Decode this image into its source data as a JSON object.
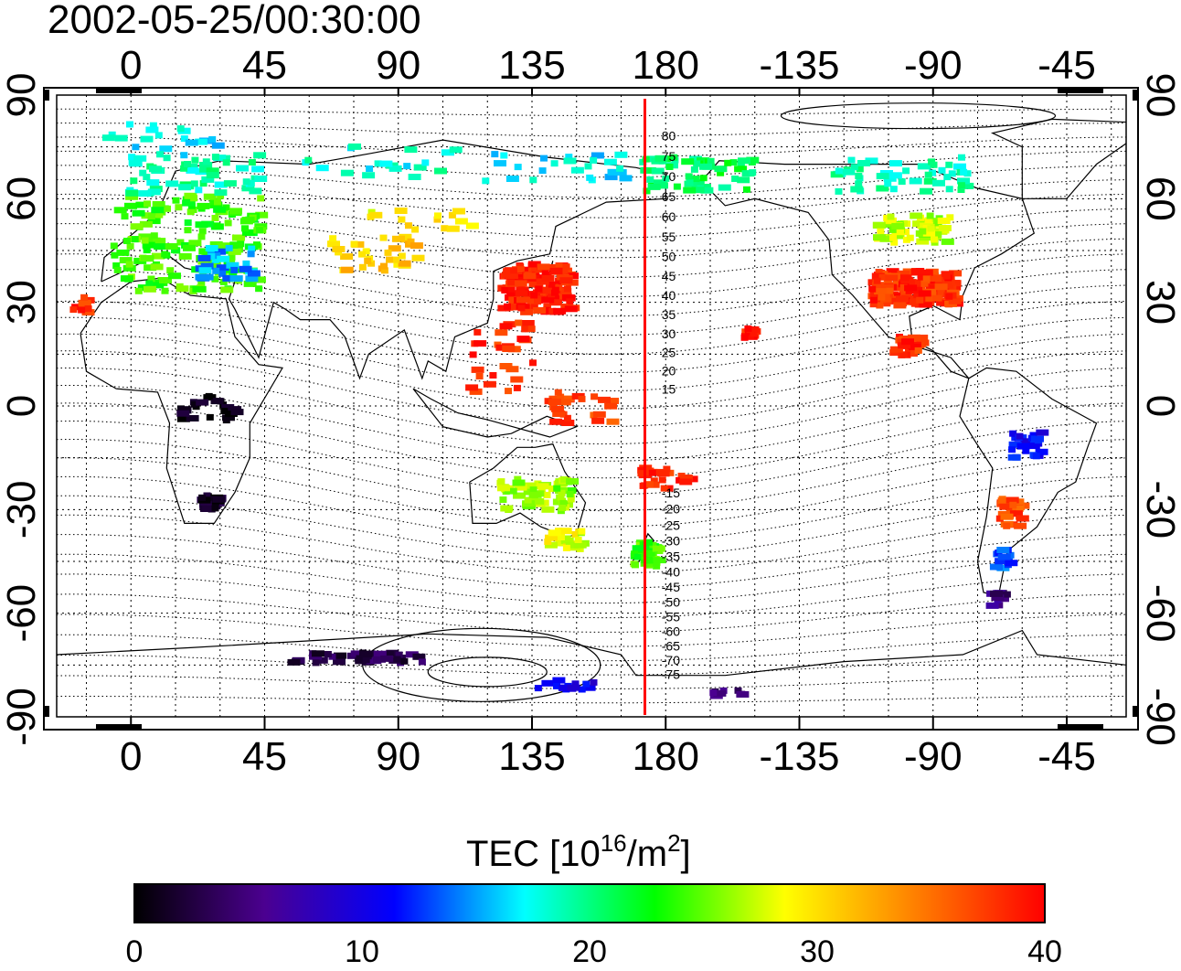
{
  "title": "2002-05-25/00:30:00",
  "top_lon_ticks": [
    "0",
    "45",
    "90",
    "135",
    "180",
    "-135",
    "-90",
    "-45"
  ],
  "bottom_lon_ticks": [
    "0",
    "45",
    "90",
    "135",
    "180",
    "-135",
    "-90",
    "-45"
  ],
  "left_lat_ticks": [
    "90",
    "60",
    "30",
    "0",
    "-30",
    "-60",
    "-90"
  ],
  "right_lat_ticks": [
    "90",
    "60",
    "30",
    "0",
    "-30",
    "-60",
    "-90"
  ],
  "contour_labels": [
    "80",
    "75",
    "70",
    "65",
    "60",
    "55",
    "50",
    "45",
    "40",
    "35",
    "30",
    "25",
    "20",
    "15",
    "-15",
    "-20",
    "-25",
    "-30",
    "-35",
    "-40",
    "-45",
    "-50",
    "-55",
    "-60",
    "-65",
    "-70",
    "-75"
  ],
  "colorbar": {
    "label_main": "TEC  [10",
    "label_sup1": "16",
    "label_mid": "/m",
    "label_sup2": "2",
    "label_end": "]",
    "ticks": [
      "0",
      "10",
      "20",
      "30",
      "40"
    ],
    "min": 0,
    "max": 40,
    "colors": [
      "#000000",
      "#4b0090",
      "#0000ff",
      "#00ffff",
      "#00ff00",
      "#ffff00",
      "#ff8000",
      "#ff0000"
    ]
  },
  "map": {
    "lon_range": [
      -25,
      335
    ],
    "lat_range": [
      -90,
      90
    ],
    "marker_line_lon": 173,
    "marker_color": "#ff0000"
  },
  "tec_clusters": [
    {
      "lon": 18,
      "lat": 48,
      "w": 50,
      "h": 28,
      "tec": 24,
      "n": 180
    },
    {
      "lon": 20,
      "lat": 68,
      "w": 45,
      "h": 12,
      "tec": 19,
      "n": 60
    },
    {
      "lon": 10,
      "lat": 78,
      "w": 40,
      "h": 10,
      "tec": 17,
      "n": 20
    },
    {
      "lon": 30,
      "lat": 42,
      "w": 20,
      "h": 10,
      "tec": 15,
      "n": 30
    },
    {
      "lon": -18,
      "lat": 30,
      "w": 8,
      "h": 5,
      "tec": 38,
      "n": 10
    },
    {
      "lon": 80,
      "lat": 45,
      "w": 30,
      "h": 10,
      "tec": 31,
      "n": 35
    },
    {
      "lon": 95,
      "lat": 55,
      "w": 40,
      "h": 6,
      "tec": 29,
      "n": 15
    },
    {
      "lon": 80,
      "lat": 72,
      "w": 55,
      "h": 10,
      "tec": 18,
      "n": 20
    },
    {
      "lon": 135,
      "lat": 35,
      "w": 24,
      "h": 14,
      "tec": 39,
      "n": 150
    },
    {
      "lon": 125,
      "lat": 15,
      "w": 25,
      "h": 20,
      "tec": 38,
      "n": 30
    },
    {
      "lon": 140,
      "lat": 70,
      "w": 50,
      "h": 8,
      "tec": 17,
      "n": 25
    },
    {
      "lon": 150,
      "lat": 0,
      "w": 22,
      "h": 10,
      "tec": 37,
      "n": 25
    },
    {
      "lon": 135,
      "lat": -25,
      "w": 25,
      "h": 10,
      "tec": 26,
      "n": 60
    },
    {
      "lon": 145,
      "lat": -38,
      "w": 12,
      "h": 6,
      "tec": 28,
      "n": 25
    },
    {
      "lon": 172,
      "lat": -42,
      "w": 8,
      "h": 7,
      "tec": 24,
      "n": 40
    },
    {
      "lon": 178,
      "lat": -20,
      "w": 22,
      "h": 6,
      "tec": 38,
      "n": 25
    },
    {
      "lon": 190,
      "lat": 68,
      "w": 40,
      "h": 10,
      "tec": 21,
      "n": 60
    },
    {
      "lon": 262,
      "lat": 35,
      "w": 28,
      "h": 10,
      "tec": 38,
      "n": 180
    },
    {
      "lon": 262,
      "lat": 52,
      "w": 25,
      "h": 8,
      "tec": 27,
      "n": 60
    },
    {
      "lon": 258,
      "lat": 68,
      "w": 45,
      "h": 10,
      "tec": 19,
      "n": 50
    },
    {
      "lon": 260,
      "lat": 18,
      "w": 10,
      "h": 6,
      "tec": 38,
      "n": 30
    },
    {
      "lon": 207,
      "lat": 22,
      "w": 4,
      "h": 3,
      "tec": 39,
      "n": 12
    },
    {
      "lon": 300,
      "lat": -10,
      "w": 10,
      "h": 8,
      "tec": 11,
      "n": 25
    },
    {
      "lon": 295,
      "lat": -30,
      "w": 8,
      "h": 8,
      "tec": 37,
      "n": 30
    },
    {
      "lon": 292,
      "lat": -42,
      "w": 6,
      "h": 8,
      "tec": 13,
      "n": 15
    },
    {
      "lon": 290,
      "lat": -55,
      "w": 5,
      "h": 4,
      "tec": 5,
      "n": 12
    },
    {
      "lon": 25,
      "lat": -27,
      "w": 6,
      "h": 4,
      "tec": 2,
      "n": 40
    },
    {
      "lon": 25,
      "lat": 0,
      "w": 20,
      "h": 8,
      "tec": 1,
      "n": 25
    },
    {
      "lon": 75,
      "lat": -72,
      "w": 45,
      "h": 3,
      "tec": 3,
      "n": 45
    },
    {
      "lon": 145,
      "lat": -80,
      "w": 20,
      "h": 3,
      "tec": 10,
      "n": 15
    },
    {
      "lon": 200,
      "lat": -82,
      "w": 12,
      "h": 2,
      "tec": 4,
      "n": 8
    }
  ]
}
